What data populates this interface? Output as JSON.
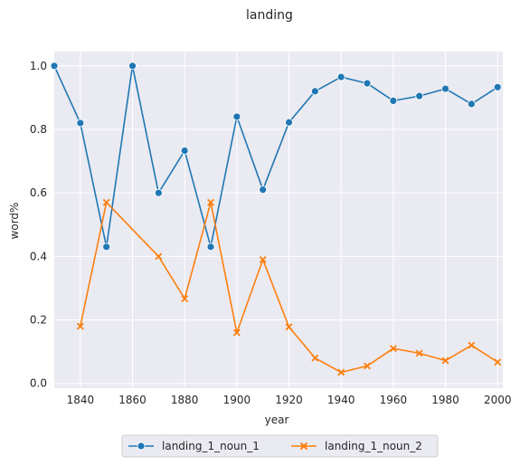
{
  "chart_data": {
    "type": "line",
    "title": "landing",
    "xlabel": "year",
    "ylabel": "word%",
    "xlim": [
      1830,
      2002
    ],
    "ylim": [
      -0.015,
      1.045
    ],
    "xticks": [
      1840,
      1860,
      1880,
      1900,
      1920,
      1940,
      1960,
      1980,
      2000
    ],
    "yticks": [
      0.0,
      0.2,
      0.4,
      0.6,
      0.8,
      1.0
    ],
    "xtick_labels": [
      "1840",
      "1860",
      "1880",
      "1900",
      "1920",
      "1940",
      "1960",
      "1980",
      "2000"
    ],
    "ytick_labels": [
      "0.0",
      "0.2",
      "0.4",
      "0.6",
      "0.8",
      "1.0"
    ],
    "grid": true,
    "legend_position": "bottom-center",
    "series": [
      {
        "name": "landing_1_noun_1",
        "color": "#1f77b4",
        "marker": "circle",
        "x": [
          1830,
          1840,
          1850,
          1860,
          1870,
          1880,
          1890,
          1900,
          1910,
          1920,
          1930,
          1940,
          1950,
          1960,
          1970,
          1980,
          1990,
          2000
        ],
        "y": [
          1.0,
          0.82,
          0.43,
          1.0,
          0.6,
          0.733,
          0.43,
          0.84,
          0.61,
          0.822,
          0.92,
          0.965,
          0.945,
          0.89,
          0.905,
          0.928,
          0.88,
          0.933
        ]
      },
      {
        "name": "landing_1_noun_2",
        "color": "#ff7f0e",
        "marker": "x",
        "x": [
          1840,
          1850,
          1870,
          1880,
          1890,
          1900,
          1910,
          1920,
          1930,
          1940,
          1950,
          1960,
          1970,
          1980,
          1990,
          2000
        ],
        "y": [
          0.18,
          0.57,
          0.4,
          0.267,
          0.57,
          0.16,
          0.39,
          0.178,
          0.08,
          0.035,
          0.055,
          0.11,
          0.095,
          0.072,
          0.12,
          0.067
        ]
      }
    ]
  }
}
